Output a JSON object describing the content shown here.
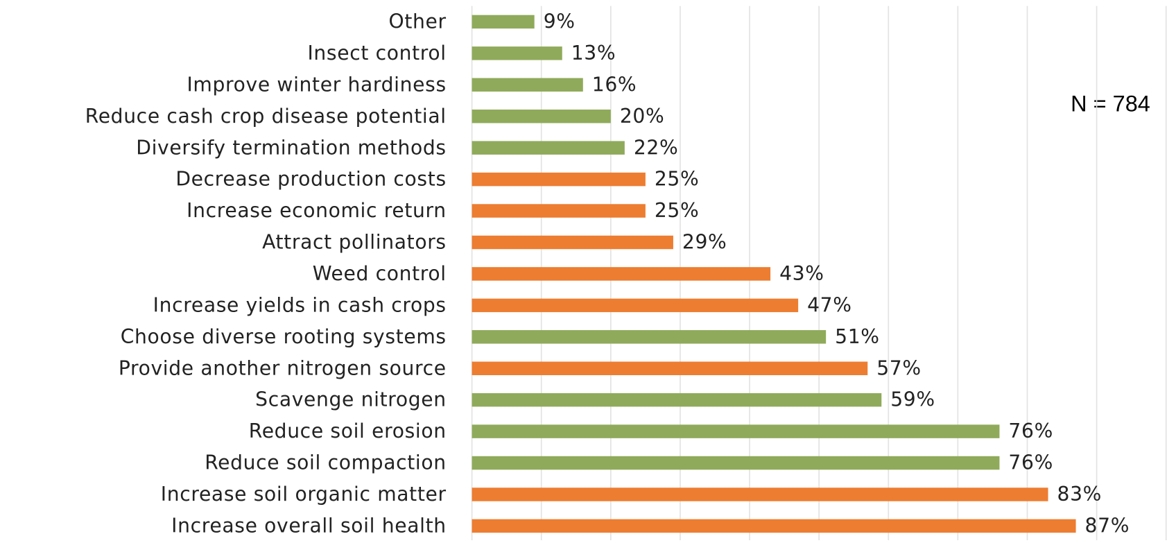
{
  "chart_data": {
    "type": "barh",
    "annotation": "N = 784",
    "categories": [
      "Other",
      "Insect control",
      "Improve winter hardiness",
      "Reduce cash crop disease potential",
      "Diversify termination methods",
      "Decrease production costs",
      "Increase economic return",
      "Attract pollinators",
      "Weed control",
      "Increase yields in cash crops",
      "Choose diverse rooting systems",
      "Provide another nitrogen source",
      "Scavenge nitrogen",
      "Reduce soil erosion",
      "Reduce soil compaction",
      "Increase soil organic matter",
      "Increase overall soil health"
    ],
    "values": [
      9,
      13,
      16,
      20,
      22,
      25,
      25,
      29,
      43,
      47,
      51,
      57,
      59,
      76,
      76,
      83,
      87
    ],
    "value_labels": [
      "9%",
      "13%",
      "16%",
      "20%",
      "22%",
      "25%",
      "25%",
      "29%",
      "43%",
      "47%",
      "51%",
      "57%",
      "59%",
      "76%",
      "76%",
      "83%",
      "87%"
    ],
    "colors": [
      "#8faa5a",
      "#8faa5a",
      "#8faa5a",
      "#8faa5a",
      "#8faa5a",
      "#ed7d31",
      "#ed7d31",
      "#ed7d31",
      "#ed7d31",
      "#ed7d31",
      "#8faa5a",
      "#ed7d31",
      "#8faa5a",
      "#8faa5a",
      "#8faa5a",
      "#ed7d31",
      "#ed7d31"
    ],
    "xlim": [
      0,
      100
    ],
    "xticks": [
      0,
      10,
      20,
      30,
      40,
      50,
      60,
      70,
      80,
      90,
      100
    ],
    "grid": true
  }
}
